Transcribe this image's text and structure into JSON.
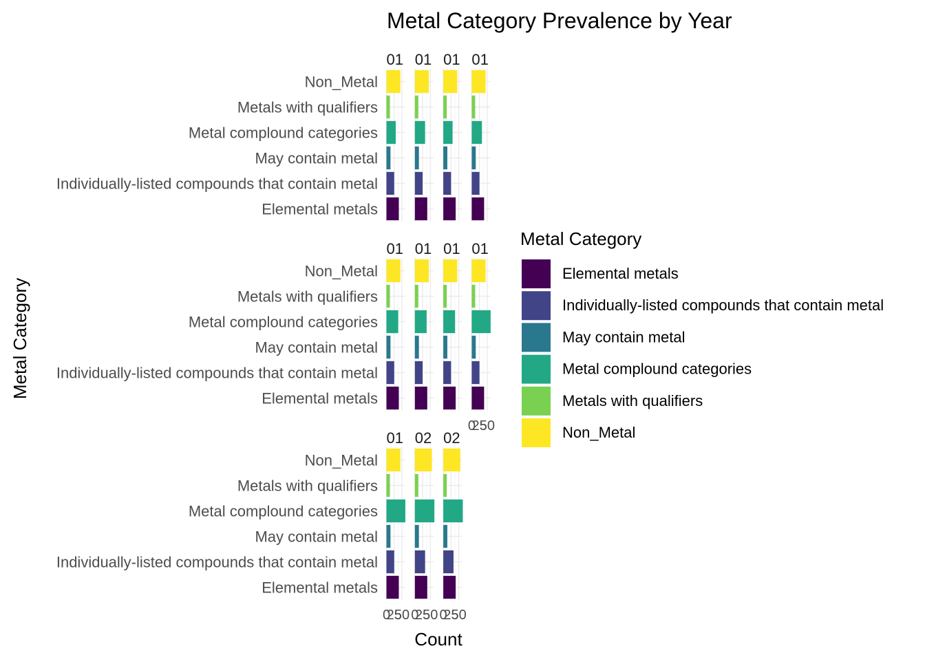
{
  "chart_data": {
    "type": "bar",
    "orientation": "horizontal",
    "faceted": true,
    "title": "Metal Category Prevalence by Year",
    "xlabel": "Count",
    "ylabel": "Metal Category",
    "legend_title": "Metal Category",
    "legend_position": "right",
    "grid": true,
    "categories": [
      "Elemental metals",
      "Individually-listed compounds that contain metal",
      "May contain metal",
      "Metal complound categories",
      "Metals with qualifiers",
      "Non_Metal"
    ],
    "colors": [
      "#440154",
      "#414487",
      "#2A788E",
      "#22A884",
      "#7AD151",
      "#FDE725"
    ],
    "xlim": [
      0,
      60
    ],
    "x_ticks": [
      "0",
      "25",
      "50"
    ],
    "panels": [
      {
        "strip": "01",
        "values": [
          40,
          25,
          13,
          30,
          11,
          45
        ]
      },
      {
        "strip": "01",
        "values": [
          40,
          25,
          13,
          33,
          11,
          45
        ]
      },
      {
        "strip": "01",
        "values": [
          40,
          25,
          13,
          30,
          11,
          45
        ]
      },
      {
        "strip": "01",
        "values": [
          40,
          25,
          13,
          33,
          11,
          45
        ]
      },
      {
        "strip": "01",
        "values": [
          40,
          25,
          13,
          38,
          11,
          45
        ]
      },
      {
        "strip": "01",
        "values": [
          40,
          25,
          13,
          38,
          11,
          45
        ]
      },
      {
        "strip": "01",
        "values": [
          40,
          25,
          13,
          38,
          11,
          45
        ]
      },
      {
        "strip": "01",
        "values": [
          40,
          25,
          13,
          61,
          11,
          45
        ]
      },
      {
        "strip": "01",
        "values": [
          40,
          25,
          13,
          61,
          11,
          45
        ]
      },
      {
        "strip": "02",
        "values": [
          40,
          33,
          13,
          63,
          11,
          55
        ]
      },
      {
        "strip": "02",
        "values": [
          40,
          33,
          13,
          63,
          11,
          55
        ]
      }
    ]
  }
}
